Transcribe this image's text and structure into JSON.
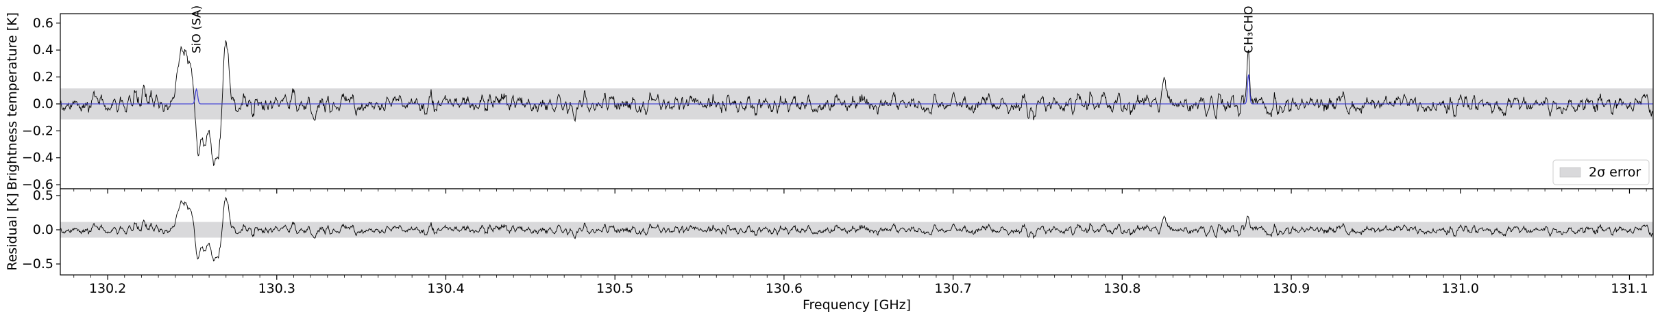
{
  "chart_data": {
    "type": "line",
    "x_unit": "GHz",
    "xlim": [
      130.172,
      131.114
    ],
    "shared_x": {
      "label": "Frequency [GHz]",
      "ticks": [
        130.2,
        130.3,
        130.4,
        130.5,
        130.6,
        130.7,
        130.8,
        130.9,
        131.0,
        131.1
      ],
      "tick_labels": [
        "130.2",
        "130.3",
        "130.4",
        "130.5",
        "130.6",
        "130.7",
        "130.8",
        "130.9",
        "131.0",
        "131.1"
      ]
    },
    "panels": [
      {
        "id": "spectrum",
        "ylabel": "Brightness temperature [K]",
        "ylim": [
          -0.63,
          0.67
        ],
        "yticks": [
          -0.6,
          -0.4,
          -0.2,
          0.0,
          0.2,
          0.4,
          0.6
        ],
        "ytick_labels": [
          "−0.6",
          "−0.4",
          "−0.2",
          "0.0",
          "0.2",
          "0.4",
          "0.6"
        ],
        "error_band": {
          "lower": -0.115,
          "upper": 0.115,
          "color": "#d9d9db"
        },
        "series": [
          {
            "role": "observed",
            "color": "#000000",
            "noise_rms": 0.05,
            "features": [
              {
                "center": 130.2405,
                "amp": 0.16,
                "width": 0.0015
              },
              {
                "center": 130.2435,
                "amp": 0.28,
                "width": 0.0015
              },
              {
                "center": 130.2465,
                "amp": 0.34,
                "width": 0.0015
              },
              {
                "center": 130.2495,
                "amp": 0.22,
                "width": 0.0012
              },
              {
                "center": 130.2535,
                "amp": -0.38,
                "width": 0.0015
              },
              {
                "center": 130.2575,
                "amp": -0.25,
                "width": 0.0015
              },
              {
                "center": 130.2625,
                "amp": -0.4,
                "width": 0.0018
              },
              {
                "center": 130.2655,
                "amp": -0.3,
                "width": 0.0012
              },
              {
                "center": 130.2695,
                "amp": 0.38,
                "width": 0.0012
              },
              {
                "center": 130.2715,
                "amp": 0.2,
                "width": 0.0012
              },
              {
                "center": 130.221,
                "amp": 0.14,
                "width": 0.001
              },
              {
                "center": 130.825,
                "amp": 0.2,
                "width": 0.001
              },
              {
                "center": 130.8745,
                "amp": 0.16,
                "width": 0.0008
              }
            ]
          },
          {
            "role": "model",
            "color": "#3a3ad6",
            "features": [
              {
                "center": 130.2525,
                "amp": 0.11,
                "width": 0.0007
              },
              {
                "center": 130.8747,
                "amp": 0.22,
                "width": 0.0006
              }
            ]
          }
        ],
        "annotations": [
          {
            "x": 130.2525,
            "text": "SiO (SA)"
          },
          {
            "x": 130.8747,
            "text": "CH₃CHO"
          }
        ],
        "legend": {
          "placement": "lower-right",
          "entry": "2σ error"
        }
      },
      {
        "id": "residual",
        "ylabel": "Residual [K]",
        "ylim": [
          -0.66,
          0.6
        ],
        "yticks": [
          -0.5,
          0.0,
          0.5
        ],
        "ytick_labels": [
          "−0.5",
          "0.0",
          "0.5"
        ],
        "error_band": {
          "lower": -0.115,
          "upper": 0.115,
          "color": "#d9d9db"
        },
        "series": [
          {
            "role": "residual",
            "color": "#000000",
            "definition": "observed minus model"
          }
        ]
      }
    ]
  }
}
